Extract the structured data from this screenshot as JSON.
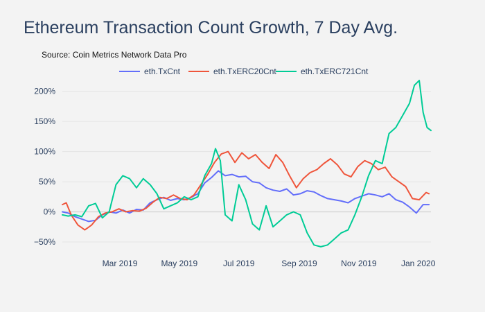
{
  "header": {
    "title": "Ethereum Transaction Count Growth, 7 Day Avg.",
    "source": "Source: Coin Metrics Network Data Pro"
  },
  "chart_data": {
    "type": "line",
    "title": "Ethereum Transaction Count Growth, 7 Day Avg.",
    "xlabel": "",
    "ylabel": "",
    "xlim": [
      "2019-01-01",
      "2020-01-14"
    ],
    "ylim": [
      -65,
      225
    ],
    "x_ticks": [
      "2019-03-01",
      "2019-05-01",
      "2019-07-01",
      "2019-09-01",
      "2019-11-01",
      "2020-01-01"
    ],
    "x_tick_labels": [
      "Mar 2019",
      "May 2019",
      "Jul 2019",
      "Sep 2019",
      "Nov 2019",
      "Jan 2020"
    ],
    "y_ticks": [
      -50,
      0,
      50,
      100,
      150,
      200
    ],
    "y_tick_labels": [
      "−50%",
      "0%",
      "50%",
      "100%",
      "150%",
      "200%"
    ],
    "grid": true,
    "legend_position": "top-center",
    "series": [
      {
        "name": "eth.TxCnt",
        "color": "#636efa",
        "points": [
          [
            "2019-01-01",
            0
          ],
          [
            "2019-01-07",
            -2
          ],
          [
            "2019-01-14",
            -8
          ],
          [
            "2019-01-21",
            -12
          ],
          [
            "2019-01-28",
            -16
          ],
          [
            "2019-02-04",
            -14
          ],
          [
            "2019-02-11",
            -5
          ],
          [
            "2019-02-18",
            0
          ],
          [
            "2019-02-25",
            -2
          ],
          [
            "2019-03-04",
            3
          ],
          [
            "2019-03-11",
            -2
          ],
          [
            "2019-03-18",
            4
          ],
          [
            "2019-03-25",
            3
          ],
          [
            "2019-04-01",
            15
          ],
          [
            "2019-04-08",
            20
          ],
          [
            "2019-04-15",
            24
          ],
          [
            "2019-04-22",
            19
          ],
          [
            "2019-04-29",
            22
          ],
          [
            "2019-05-06",
            20
          ],
          [
            "2019-05-13",
            24
          ],
          [
            "2019-05-20",
            30
          ],
          [
            "2019-05-27",
            48
          ],
          [
            "2019-06-03",
            57
          ],
          [
            "2019-06-10",
            68
          ],
          [
            "2019-06-17",
            60
          ],
          [
            "2019-06-24",
            62
          ],
          [
            "2019-07-01",
            58
          ],
          [
            "2019-07-08",
            59
          ],
          [
            "2019-07-15",
            50
          ],
          [
            "2019-07-22",
            48
          ],
          [
            "2019-07-29",
            40
          ],
          [
            "2019-08-05",
            36
          ],
          [
            "2019-08-12",
            34
          ],
          [
            "2019-08-19",
            38
          ],
          [
            "2019-08-26",
            28
          ],
          [
            "2019-09-02",
            30
          ],
          [
            "2019-09-09",
            35
          ],
          [
            "2019-09-16",
            33
          ],
          [
            "2019-09-23",
            27
          ],
          [
            "2019-09-30",
            22
          ],
          [
            "2019-10-07",
            20
          ],
          [
            "2019-10-14",
            18
          ],
          [
            "2019-10-21",
            15
          ],
          [
            "2019-10-28",
            22
          ],
          [
            "2019-11-04",
            26
          ],
          [
            "2019-11-11",
            30
          ],
          [
            "2019-11-18",
            28
          ],
          [
            "2019-11-25",
            25
          ],
          [
            "2019-12-02",
            30
          ],
          [
            "2019-12-09",
            20
          ],
          [
            "2019-12-16",
            16
          ],
          [
            "2019-12-23",
            8
          ],
          [
            "2019-12-30",
            -2
          ],
          [
            "2020-01-06",
            12
          ],
          [
            "2020-01-12",
            12
          ]
        ]
      },
      {
        "name": "eth.TxERC20Cnt",
        "color": "#ef553b",
        "points": [
          [
            "2019-01-01",
            12
          ],
          [
            "2019-01-05",
            15
          ],
          [
            "2019-01-10",
            -5
          ],
          [
            "2019-01-17",
            -22
          ],
          [
            "2019-01-24",
            -30
          ],
          [
            "2019-01-31",
            -22
          ],
          [
            "2019-02-07",
            -8
          ],
          [
            "2019-02-14",
            -2
          ],
          [
            "2019-02-21",
            0
          ],
          [
            "2019-02-28",
            5
          ],
          [
            "2019-03-07",
            0
          ],
          [
            "2019-03-14",
            2
          ],
          [
            "2019-03-21",
            1
          ],
          [
            "2019-03-28",
            6
          ],
          [
            "2019-04-04",
            16
          ],
          [
            "2019-04-11",
            24
          ],
          [
            "2019-04-18",
            22
          ],
          [
            "2019-04-25",
            28
          ],
          [
            "2019-05-02",
            22
          ],
          [
            "2019-05-09",
            20
          ],
          [
            "2019-05-16",
            28
          ],
          [
            "2019-05-23",
            45
          ],
          [
            "2019-05-30",
            62
          ],
          [
            "2019-06-06",
            82
          ],
          [
            "2019-06-13",
            96
          ],
          [
            "2019-06-20",
            100
          ],
          [
            "2019-06-27",
            82
          ],
          [
            "2019-07-04",
            98
          ],
          [
            "2019-07-11",
            88
          ],
          [
            "2019-07-18",
            95
          ],
          [
            "2019-07-25",
            82
          ],
          [
            "2019-08-01",
            72
          ],
          [
            "2019-08-08",
            95
          ],
          [
            "2019-08-15",
            82
          ],
          [
            "2019-08-22",
            60
          ],
          [
            "2019-08-29",
            40
          ],
          [
            "2019-09-05",
            55
          ],
          [
            "2019-09-12",
            65
          ],
          [
            "2019-09-19",
            70
          ],
          [
            "2019-09-26",
            80
          ],
          [
            "2019-10-03",
            88
          ],
          [
            "2019-10-10",
            78
          ],
          [
            "2019-10-17",
            63
          ],
          [
            "2019-10-24",
            58
          ],
          [
            "2019-10-31",
            75
          ],
          [
            "2019-11-07",
            85
          ],
          [
            "2019-11-14",
            80
          ],
          [
            "2019-11-21",
            70
          ],
          [
            "2019-11-28",
            74
          ],
          [
            "2019-12-05",
            58
          ],
          [
            "2019-12-12",
            50
          ],
          [
            "2019-12-19",
            42
          ],
          [
            "2019-12-26",
            22
          ],
          [
            "2020-01-02",
            20
          ],
          [
            "2020-01-09",
            32
          ],
          [
            "2020-01-12",
            30
          ]
        ]
      },
      {
        "name": "eth.TxERC721Cnt",
        "color": "#00cc96",
        "points": [
          [
            "2019-01-01",
            -5
          ],
          [
            "2019-01-07",
            -7
          ],
          [
            "2019-01-14",
            -5
          ],
          [
            "2019-01-21",
            -8
          ],
          [
            "2019-01-28",
            10
          ],
          [
            "2019-02-04",
            14
          ],
          [
            "2019-02-11",
            -10
          ],
          [
            "2019-02-18",
            0
          ],
          [
            "2019-02-25",
            45
          ],
          [
            "2019-03-04",
            60
          ],
          [
            "2019-03-11",
            55
          ],
          [
            "2019-03-18",
            40
          ],
          [
            "2019-03-25",
            55
          ],
          [
            "2019-04-01",
            45
          ],
          [
            "2019-04-08",
            30
          ],
          [
            "2019-04-15",
            5
          ],
          [
            "2019-04-22",
            10
          ],
          [
            "2019-04-29",
            15
          ],
          [
            "2019-05-06",
            25
          ],
          [
            "2019-05-13",
            20
          ],
          [
            "2019-05-20",
            25
          ],
          [
            "2019-05-27",
            60
          ],
          [
            "2019-06-03",
            80
          ],
          [
            "2019-06-07",
            105
          ],
          [
            "2019-06-12",
            85
          ],
          [
            "2019-06-17",
            -5
          ],
          [
            "2019-06-24",
            -15
          ],
          [
            "2019-07-01",
            45
          ],
          [
            "2019-07-08",
            20
          ],
          [
            "2019-07-15",
            -20
          ],
          [
            "2019-07-22",
            -30
          ],
          [
            "2019-07-29",
            10
          ],
          [
            "2019-08-05",
            -25
          ],
          [
            "2019-08-12",
            -15
          ],
          [
            "2019-08-19",
            -5
          ],
          [
            "2019-08-26",
            0
          ],
          [
            "2019-09-02",
            -5
          ],
          [
            "2019-09-09",
            -35
          ],
          [
            "2019-09-16",
            -55
          ],
          [
            "2019-09-23",
            -58
          ],
          [
            "2019-09-30",
            -55
          ],
          [
            "2019-10-07",
            -45
          ],
          [
            "2019-10-14",
            -35
          ],
          [
            "2019-10-21",
            -30
          ],
          [
            "2019-10-28",
            -5
          ],
          [
            "2019-11-04",
            25
          ],
          [
            "2019-11-11",
            60
          ],
          [
            "2019-11-18",
            85
          ],
          [
            "2019-11-25",
            80
          ],
          [
            "2019-12-02",
            130
          ],
          [
            "2019-12-09",
            140
          ],
          [
            "2019-12-16",
            160
          ],
          [
            "2019-12-23",
            180
          ],
          [
            "2019-12-28",
            210
          ],
          [
            "2020-01-02",
            218
          ],
          [
            "2020-01-06",
            165
          ],
          [
            "2020-01-10",
            140
          ],
          [
            "2020-01-14",
            135
          ]
        ]
      }
    ]
  }
}
